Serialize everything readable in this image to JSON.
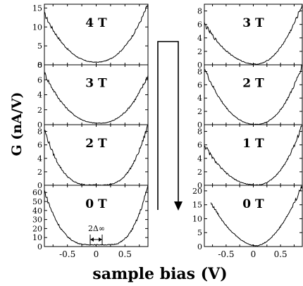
{
  "figure": {
    "ylabel": "G (nA/V)",
    "xlabel": "sample bias (V)",
    "annotation": "2Δ∞"
  },
  "chart_data": [
    {
      "type": "line",
      "column": "left",
      "row": 0,
      "field_label": "4 T",
      "xlim": [
        -0.9,
        0.9
      ],
      "ylim": [
        0,
        16
      ],
      "yticks": [
        0,
        5,
        10,
        15
      ],
      "shape": {
        "min": 0.7,
        "center": 0.0,
        "left_edge": 13.5,
        "right_edge": 16.0,
        "exp": 2.2
      }
    },
    {
      "type": "line",
      "column": "left",
      "row": 1,
      "field_label": "3 T",
      "xlim": [
        -0.9,
        0.9
      ],
      "ylim": [
        0,
        8
      ],
      "yticks": [
        0,
        2,
        4,
        6,
        8
      ],
      "shape": {
        "min": 0.2,
        "center": 0.05,
        "left_edge": 6.9,
        "right_edge": 6.6,
        "exp": 2.3
      }
    },
    {
      "type": "line",
      "column": "left",
      "row": 2,
      "field_label": "2 T",
      "xlim": [
        -0.9,
        0.9
      ],
      "ylim": [
        0,
        9
      ],
      "yticks": [
        0,
        2,
        4,
        6,
        8
      ],
      "shape": {
        "min": 0.05,
        "center": 0.0,
        "left_edge": 8.3,
        "right_edge": 9.0,
        "exp": 2.6,
        "flat": 0.12
      }
    },
    {
      "type": "line",
      "column": "left",
      "row": 3,
      "field_label": "0 T",
      "xlim": [
        -0.9,
        0.9
      ],
      "ylim": [
        0,
        68
      ],
      "yticks": [
        0,
        10,
        20,
        30,
        40,
        50,
        60
      ],
      "xticks": [
        -0.5,
        0,
        0.5
      ],
      "shape": {
        "min": 2,
        "center": 0.05,
        "left_edge": 62,
        "right_edge": 68,
        "exp": 2.7,
        "flat": 0.15
      }
    },
    {
      "type": "line",
      "column": "right",
      "row": 0,
      "field_label": "3 T",
      "xlim": [
        -0.9,
        0.9
      ],
      "ylim": [
        0,
        9
      ],
      "yticks": [
        0,
        2,
        4,
        6,
        8
      ],
      "shape": {
        "min": 0.1,
        "center": 0.05,
        "left_edge": 6.1,
        "right_edge": 9.0,
        "exp": 2.0
      }
    },
    {
      "type": "line",
      "column": "right",
      "row": 1,
      "field_label": "2 T",
      "xlim": [
        -0.9,
        0.9
      ],
      "ylim": [
        0,
        9
      ],
      "yticks": [
        0,
        2,
        4,
        6,
        8
      ],
      "shape": {
        "min": 0.05,
        "center": 0.05,
        "left_edge": 8.5,
        "right_edge": 9.0,
        "exp": 2.2
      }
    },
    {
      "type": "line",
      "column": "right",
      "row": 2,
      "field_label": "1 T",
      "xlim": [
        -0.9,
        0.9
      ],
      "ylim": [
        0,
        9
      ],
      "yticks": [
        0,
        2,
        4,
        6,
        8
      ],
      "shape": {
        "min": 0.05,
        "center": 0.05,
        "left_edge": 6.0,
        "right_edge": 9.0,
        "exp": 2.2
      }
    },
    {
      "type": "line",
      "column": "right",
      "row": 3,
      "field_label": "0 T",
      "xlim": [
        -0.9,
        0.9
      ],
      "ylim": [
        0,
        22
      ],
      "yticks": [
        0,
        5,
        10,
        15,
        20
      ],
      "xticks": [
        -0.5,
        0,
        0.5
      ],
      "shape": {
        "min": 0.3,
        "center": 0.05,
        "left_edge": 20,
        "right_edge": 22,
        "exp": 1.8,
        "x_start": -0.78
      }
    }
  ]
}
